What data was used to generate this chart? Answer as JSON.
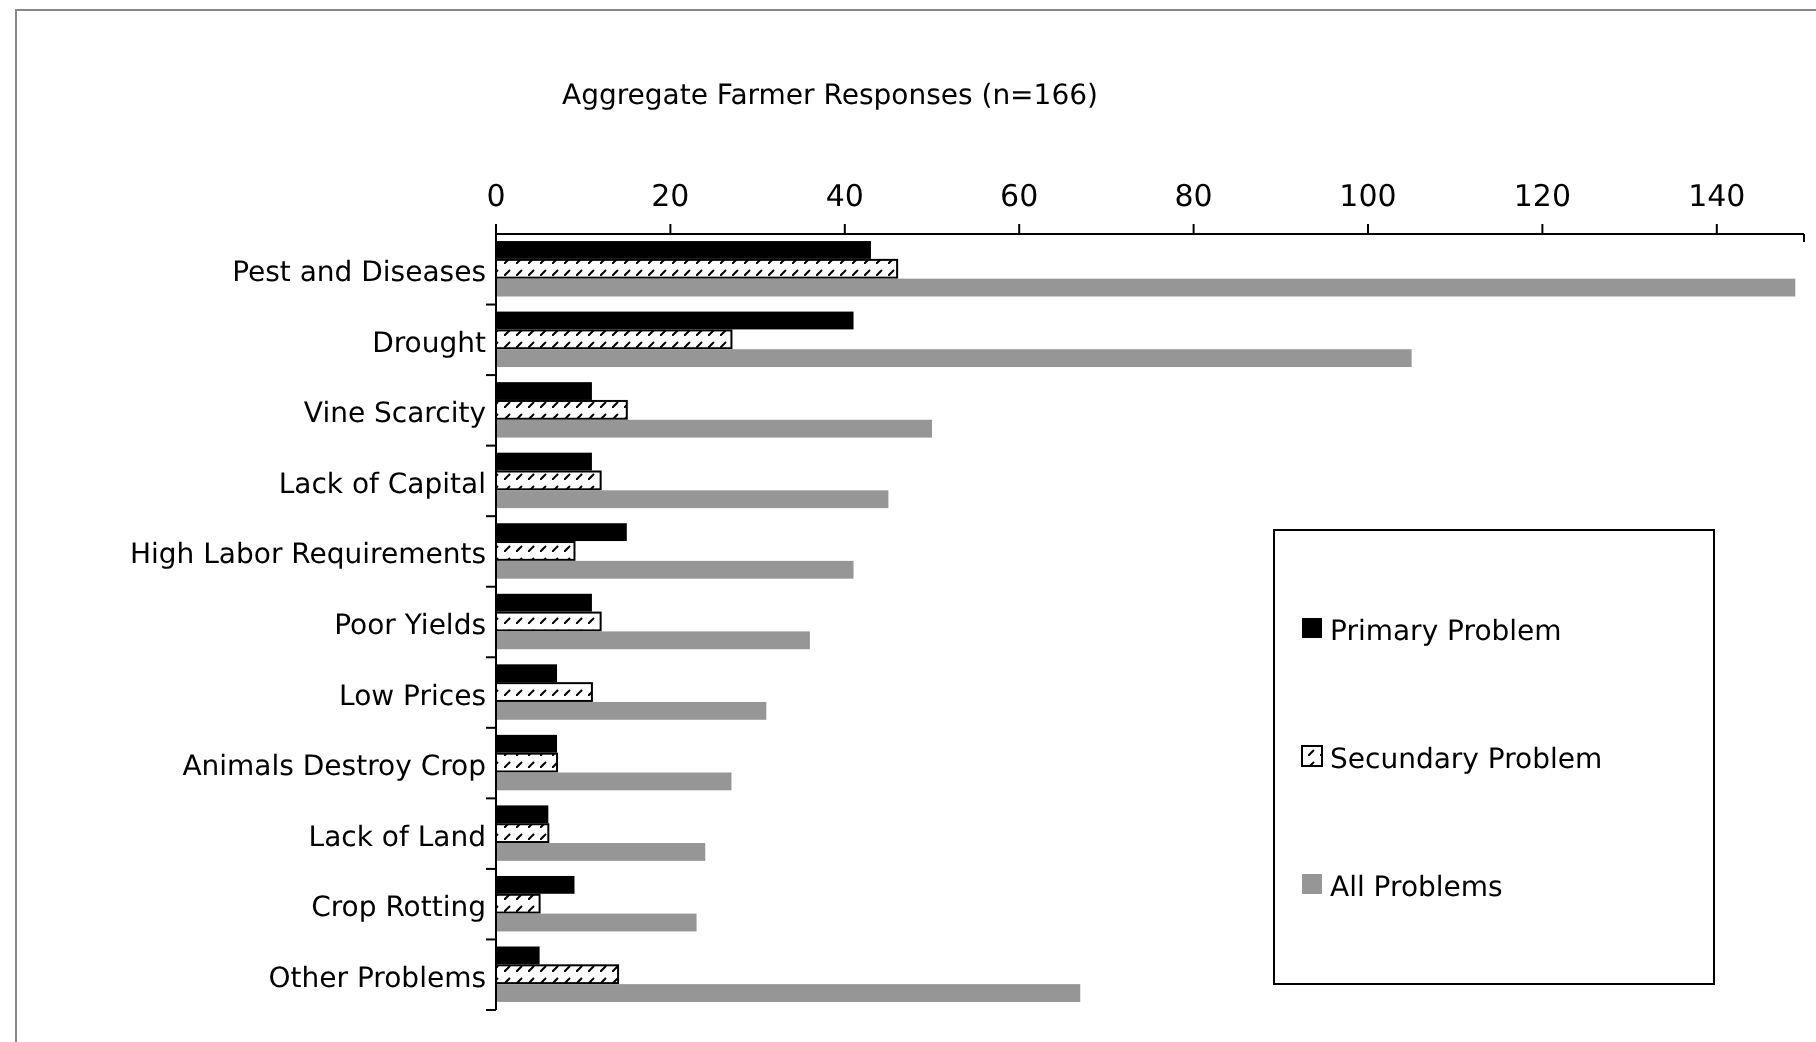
{
  "chart_data": {
    "type": "bar",
    "orientation": "horizontal",
    "title": "Aggregate Farmer Responses (n=166)",
    "categories": [
      "Pest and Diseases",
      "Drought",
      "Vine Scarcity",
      "Lack of Capital",
      "High Labor Requirements",
      "Poor Yields",
      "Low Prices",
      "Animals Destroy Crop",
      "Lack of Land",
      "Crop Rotting",
      "Other Problems"
    ],
    "series": [
      {
        "name": "Primary Problem",
        "color": "#000000",
        "values": [
          43,
          41,
          11,
          11,
          15,
          11,
          7,
          7,
          6,
          9,
          5
        ]
      },
      {
        "name": "Secundary Problem",
        "color": "#000000",
        "values": [
          46,
          27,
          15,
          12,
          9,
          12,
          11,
          7,
          6,
          5,
          14
        ]
      },
      {
        "name": "All Problems",
        "color": "#969696",
        "values": [
          149,
          105,
          50,
          45,
          41,
          36,
          31,
          27,
          24,
          23,
          67
        ]
      }
    ],
    "xlim": [
      0,
      150
    ],
    "xticks": [
      0,
      20,
      40,
      60,
      80,
      100,
      120,
      140
    ],
    "grid": false,
    "legend": "bottom right"
  }
}
